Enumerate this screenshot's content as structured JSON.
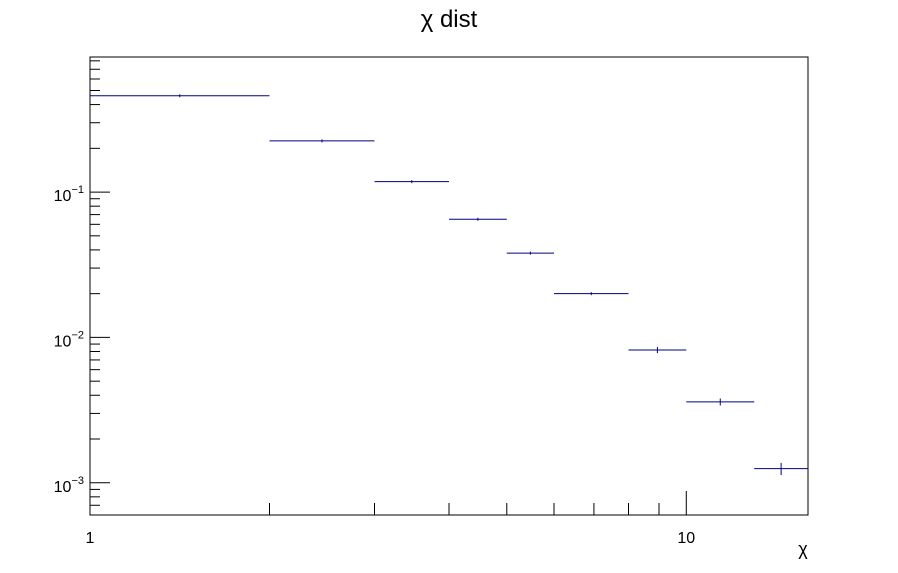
{
  "chart_data": {
    "type": "scatter",
    "title": "χ dist",
    "xlabel": "χ",
    "ylabel": "",
    "x_scale": "log",
    "y_scale": "log",
    "xlim": [
      1,
      16
    ],
    "ylim": [
      0.0006,
      0.85
    ],
    "grid": false,
    "legend": "none",
    "x_tick_labels": [
      {
        "value": 1,
        "text": "1"
      },
      {
        "value": 10,
        "text": "10"
      }
    ],
    "y_tick_labels": [
      {
        "value": 0.1,
        "base": "10",
        "exp": "−1"
      },
      {
        "value": 0.01,
        "base": "10",
        "exp": "−2"
      },
      {
        "value": 0.001,
        "base": "10",
        "exp": "−3"
      }
    ],
    "series": [
      {
        "color": "#000080",
        "bins": [
          {
            "x_low": 1,
            "x_high": 2,
            "y": 0.46,
            "err": 0.0
          },
          {
            "x_low": 2,
            "x_high": 3,
            "y": 0.225,
            "err": 0.002
          },
          {
            "x_low": 3,
            "x_high": 4,
            "y": 0.118,
            "err": 0.0015
          },
          {
            "x_low": 4,
            "x_high": 5,
            "y": 0.065,
            "err": 0.001
          },
          {
            "x_low": 5,
            "x_high": 6,
            "y": 0.038,
            "err": 0.0008
          },
          {
            "x_low": 6,
            "x_high": 8,
            "y": 0.02,
            "err": 0.0004
          },
          {
            "x_low": 8,
            "x_high": 10,
            "y": 0.0082,
            "err": 0.0004
          },
          {
            "x_low": 10,
            "x_high": 13,
            "y": 0.0036,
            "err": 0.0002
          },
          {
            "x_low": 13,
            "x_high": 16,
            "y": 0.00125,
            "err": 0.00012
          }
        ]
      }
    ]
  }
}
